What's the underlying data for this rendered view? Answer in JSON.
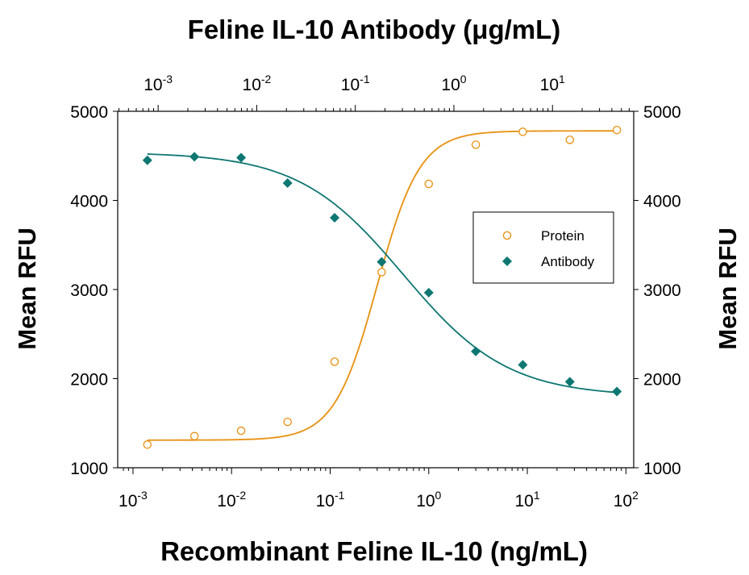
{
  "chart_data": {
    "type": "scatter",
    "title": "Feline IL-10 Antibody (μg/mL)",
    "xlabel": "Recombinant Feline IL-10 (ng/mL)",
    "ylabel": "Mean RFU",
    "ylabel_right": "Mean RFU",
    "xscale": "log",
    "xlim": [
      0.0007,
      120
    ],
    "ylim": [
      1000,
      5000
    ],
    "x_bottom_ticks": [
      {
        "base": "10",
        "exp": "-3",
        "value": 0.001
      },
      {
        "base": "10",
        "exp": "-2",
        "value": 0.01
      },
      {
        "base": "10",
        "exp": "-1",
        "value": 0.1
      },
      {
        "base": "10",
        "exp": "0",
        "value": 1
      },
      {
        "base": "10",
        "exp": "1",
        "value": 10
      },
      {
        "base": "10",
        "exp": "2",
        "value": 100
      }
    ],
    "x_top_ticks": [
      {
        "base": "10",
        "exp": "-3",
        "value": 0.0018
      },
      {
        "base": "10",
        "exp": "-2",
        "value": 0.018
      },
      {
        "base": "10",
        "exp": "-1",
        "value": 0.18
      },
      {
        "base": "10",
        "exp": "0",
        "value": 1.8
      },
      {
        "base": "10",
        "exp": "1",
        "value": 18
      }
    ],
    "y_ticks": [
      1000,
      2000,
      3000,
      4000,
      5000
    ],
    "legend": {
      "position": "right-center",
      "items": [
        "Protein",
        "Antibody"
      ]
    },
    "grid": false,
    "series": [
      {
        "name": "Protein",
        "marker": "open-circle",
        "color": "#E8900F",
        "x": [
          0.0014,
          0.0042,
          0.0125,
          0.037,
          0.111,
          0.333,
          1.0,
          3.0,
          9.0,
          27.0,
          81.0
        ],
        "y": [
          1260,
          1355,
          1415,
          1515,
          2190,
          3195,
          4185,
          4625,
          4770,
          4680,
          4790
        ],
        "fit": {
          "bottom": 1310,
          "top": 4780,
          "ec50": 0.3,
          "hill": 2.0
        }
      },
      {
        "name": "Antibody",
        "marker": "filled-diamond",
        "color": "#0E7772",
        "x": [
          0.0014,
          0.0042,
          0.0125,
          0.037,
          0.111,
          0.333,
          1.0,
          3.0,
          9.0,
          27.0,
          81.0
        ],
        "y": [
          4450,
          4490,
          4480,
          4195,
          3805,
          3310,
          2965,
          2305,
          2155,
          1965,
          1855
        ],
        "fit": {
          "top": 4540,
          "bottom": 1800,
          "ec50": 0.55,
          "hill": 0.82
        }
      }
    ]
  }
}
